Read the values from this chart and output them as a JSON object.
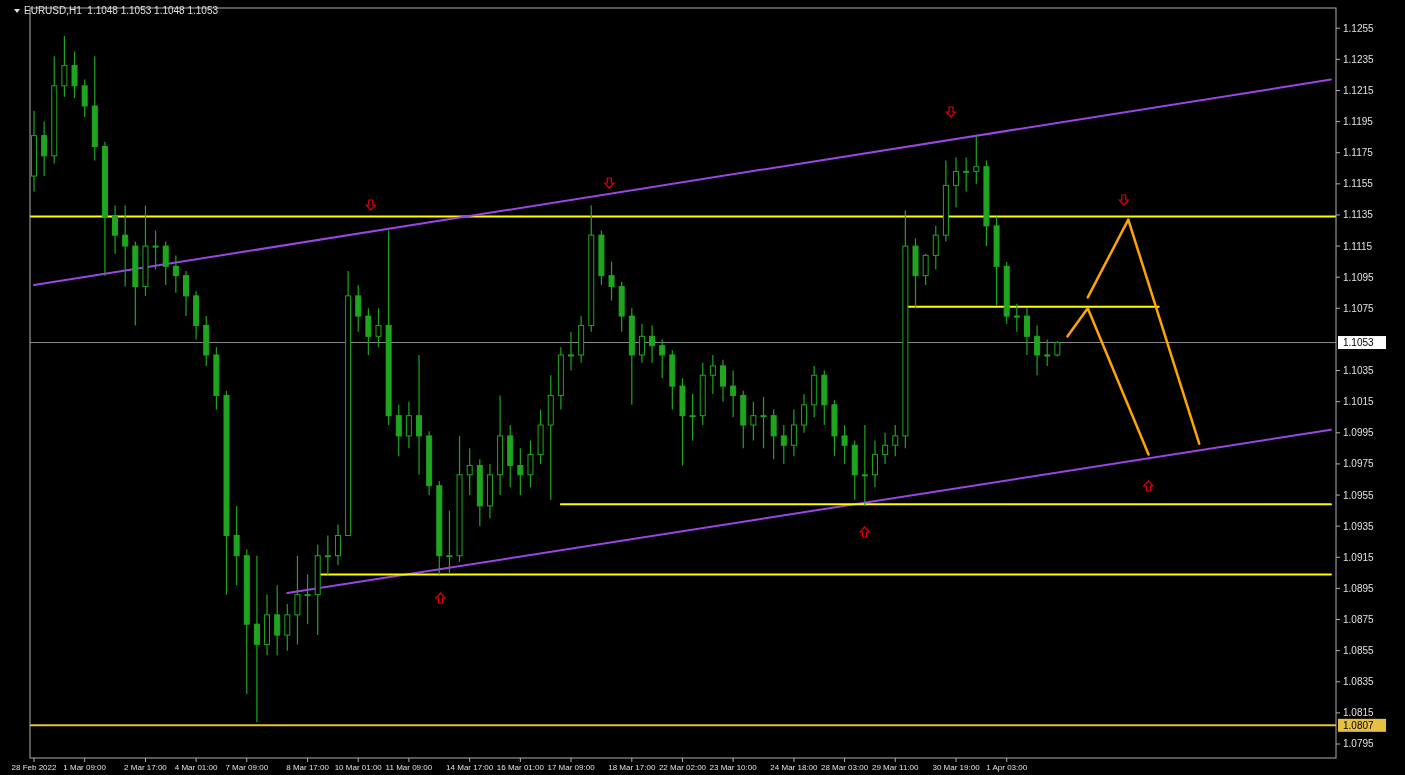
{
  "chart_data": {
    "type": "candlestick",
    "title": "EURUSD,H1  1.1048 1.1053 1.1048 1.1053",
    "categories": [
      "28 Feb 2022",
      null,
      null,
      null,
      null,
      "1 Mar 09:00",
      null,
      null,
      null,
      null,
      null,
      "2 Mar 17:00",
      null,
      null,
      null,
      null,
      "4 Mar 01:00",
      null,
      null,
      null,
      null,
      "7 Mar 09:00",
      null,
      null,
      null,
      null,
      null,
      "8 Mar 17:00",
      null,
      null,
      null,
      null,
      "10 Mar 01:00",
      null,
      null,
      null,
      null,
      "11 Mar 09:00",
      null,
      null,
      null,
      null,
      null,
      "14 Mar 17:00",
      null,
      null,
      null,
      null,
      "16 Mar 01:00",
      null,
      null,
      null,
      null,
      "17 Mar 09:00",
      null,
      null,
      null,
      null,
      null,
      "18 Mar 17:00",
      null,
      null,
      null,
      null,
      "22 Mar 02:00",
      null,
      null,
      null,
      null,
      "23 Mar 10:00",
      null,
      null,
      null,
      null,
      null,
      "24 Mar 18:00",
      null,
      null,
      null,
      null,
      "28 Mar 03:00",
      null,
      null,
      null,
      null,
      "29 Mar 11:00",
      null,
      null,
      null,
      null,
      null,
      "30 Mar 19:00",
      null,
      null,
      null,
      null,
      "1 Apr 03:00",
      null,
      null,
      null,
      null,
      null,
      null,
      null,
      null,
      null,
      null,
      null,
      null,
      null,
      null,
      null,
      null,
      null,
      null,
      null,
      null,
      null,
      null,
      null,
      null,
      null,
      null,
      null,
      null,
      null,
      null,
      null,
      null
    ],
    "ylim": [
      1.0786,
      1.1268
    ],
    "yticks": [
      1.0795,
      1.0815,
      1.0835,
      1.0855,
      1.0875,
      1.0895,
      1.0915,
      1.0935,
      1.0955,
      1.0975,
      1.0995,
      1.1015,
      1.1035,
      1.1075,
      1.1095,
      1.1115,
      1.1135,
      1.1155,
      1.1175,
      1.1195,
      1.1215,
      1.1235,
      1.1255
    ],
    "grid": false,
    "color": "#1fa51f",
    "ref_lines": [
      {
        "axis": "y",
        "value": 1.1134,
        "color": "#ffff00"
      },
      {
        "axis": "y",
        "value": 1.1053,
        "label": "1.1053",
        "color": "#8c8c8c"
      },
      {
        "axis": "y",
        "value": 1.0807,
        "label": "1.0807",
        "color": "#e8c040"
      }
    ],
    "series": [
      {
        "type": "line",
        "color": "#9b45e4",
        "values": [
          1.109,
          null,
          null,
          null,
          null,
          null,
          null,
          null,
          null,
          null,
          null,
          null,
          null,
          null,
          null,
          null,
          null,
          null,
          null,
          null,
          null,
          null,
          null,
          null,
          null,
          null,
          null,
          null,
          null,
          null,
          null,
          null,
          null,
          null,
          null,
          null,
          null,
          null,
          null,
          null,
          null,
          null,
          null,
          null,
          null,
          null,
          null,
          null,
          null,
          null,
          null,
          null,
          null,
          null,
          null,
          null,
          null,
          null,
          null,
          null,
          null,
          null,
          null,
          null,
          null,
          null,
          null,
          null,
          null,
          null,
          null,
          null,
          null,
          null,
          null,
          null,
          null,
          null,
          null,
          null,
          null,
          null,
          null,
          null,
          null,
          null,
          null,
          null,
          null,
          null,
          null,
          null,
          null,
          null,
          null,
          null,
          null,
          null,
          null,
          null,
          null,
          null,
          null,
          null,
          null,
          null,
          null,
          null,
          null,
          null,
          null,
          null,
          null,
          null,
          null,
          null,
          null,
          null,
          null,
          null,
          null,
          null,
          null,
          null,
          null,
          null,
          null,
          null,
          1.1222
        ]
      },
      {
        "type": "line",
        "color": "#9b45e4",
        "values": [
          null,
          null,
          null,
          null,
          null,
          null,
          null,
          null,
          null,
          null,
          null,
          null,
          null,
          null,
          null,
          null,
          null,
          null,
          null,
          null,
          null,
          null,
          null,
          null,
          null,
          1.0892,
          null,
          null,
          null,
          null,
          null,
          null,
          null,
          null,
          null,
          null,
          null,
          null,
          null,
          null,
          null,
          null,
          null,
          null,
          null,
          null,
          null,
          null,
          null,
          null,
          null,
          null,
          null,
          null,
          null,
          null,
          null,
          null,
          null,
          null,
          null,
          null,
          null,
          null,
          null,
          null,
          null,
          null,
          null,
          null,
          null,
          null,
          null,
          null,
          null,
          null,
          null,
          null,
          null,
          null,
          null,
          null,
          null,
          null,
          null,
          null,
          null,
          null,
          null,
          null,
          null,
          null,
          null,
          null,
          null,
          null,
          null,
          null,
          null,
          null,
          null,
          null,
          null,
          null,
          null,
          null,
          null,
          null,
          null,
          null,
          null,
          null,
          null,
          null,
          null,
          null,
          null,
          null,
          null,
          null,
          null,
          null,
          null,
          null,
          null,
          null,
          null,
          null,
          1.0997
        ]
      },
      {
        "type": "line",
        "color": "#ffff00",
        "values": [
          null,
          null,
          null,
          null,
          null,
          null,
          null,
          null,
          null,
          null,
          null,
          null,
          null,
          null,
          null,
          null,
          null,
          null,
          null,
          null,
          null,
          null,
          null,
          null,
          null,
          null,
          null,
          null,
          null,
          null,
          null,
          null,
          null,
          null,
          null,
          null,
          null,
          null,
          null,
          null,
          null,
          null,
          null,
          null,
          null,
          null,
          null,
          null,
          null,
          null,
          null,
          null,
          null,
          null,
          null,
          null,
          null,
          null,
          null,
          null,
          null,
          null,
          null,
          null,
          null,
          null,
          null,
          null,
          null,
          null,
          null,
          null,
          null,
          null,
          null,
          null,
          null,
          null,
          null,
          null,
          null,
          null,
          null,
          null,
          null,
          null,
          1.1076,
          null,
          null,
          null,
          null,
          null,
          null,
          null,
          null,
          null,
          null,
          null,
          null,
          null,
          null,
          null,
          null,
          null,
          null,
          null,
          null,
          null,
          null,
          null,
          null,
          1.1076,
          null,
          null,
          null,
          null,
          null,
          null,
          null,
          null,
          null,
          null,
          null,
          null,
          null,
          null,
          null,
          null,
          null
        ]
      },
      {
        "type": "line",
        "color": "#ffff00",
        "values": [
          null,
          null,
          null,
          null,
          null,
          null,
          null,
          null,
          null,
          null,
          null,
          null,
          null,
          null,
          null,
          null,
          null,
          null,
          null,
          null,
          null,
          null,
          null,
          null,
          null,
          null,
          null,
          null,
          null,
          null,
          null,
          null,
          null,
          null,
          null,
          null,
          null,
          null,
          null,
          null,
          null,
          null,
          null,
          null,
          null,
          null,
          null,
          null,
          null,
          null,
          null,
          null,
          1.0949,
          null,
          null,
          null,
          null,
          null,
          null,
          null,
          null,
          null,
          null,
          null,
          null,
          null,
          null,
          null,
          null,
          null,
          null,
          null,
          null,
          null,
          null,
          null,
          null,
          null,
          null,
          null,
          null,
          null,
          null,
          null,
          null,
          null,
          null,
          null,
          null,
          null,
          null,
          null,
          null,
          null,
          null,
          null,
          null,
          null,
          null,
          null,
          null,
          null,
          null,
          null,
          null,
          null,
          null,
          null,
          null,
          null,
          null,
          null,
          null,
          null,
          null,
          null,
          null,
          null,
          null,
          null,
          null,
          null,
          null,
          null,
          null,
          null,
          null,
          null,
          1.0949
        ]
      },
      {
        "type": "line",
        "color": "#ffff00",
        "values": [
          null,
          null,
          null,
          null,
          null,
          null,
          null,
          null,
          null,
          null,
          null,
          null,
          null,
          null,
          null,
          null,
          null,
          null,
          null,
          null,
          null,
          null,
          null,
          null,
          null,
          null,
          null,
          null,
          1.0904,
          null,
          null,
          null,
          null,
          null,
          null,
          null,
          null,
          null,
          null,
          null,
          null,
          null,
          null,
          null,
          null,
          null,
          null,
          null,
          null,
          null,
          null,
          null,
          null,
          null,
          null,
          null,
          null,
          null,
          null,
          null,
          null,
          null,
          null,
          null,
          null,
          null,
          null,
          null,
          null,
          null,
          null,
          null,
          null,
          null,
          null,
          null,
          null,
          null,
          null,
          null,
          null,
          null,
          null,
          null,
          null,
          null,
          null,
          null,
          null,
          null,
          null,
          null,
          null,
          null,
          null,
          null,
          null,
          null,
          null,
          null,
          null,
          null,
          null,
          null,
          null,
          null,
          null,
          null,
          null,
          null,
          null,
          null,
          null,
          null,
          null,
          null,
          null,
          null,
          null,
          null,
          null,
          null,
          null,
          null,
          null,
          null,
          null,
          null,
          1.0904
        ]
      },
      {
        "type": "line",
        "color": "#ffa500",
        "values": [
          null,
          null,
          null,
          null,
          null,
          null,
          null,
          null,
          null,
          null,
          null,
          null,
          null,
          null,
          null,
          null,
          null,
          null,
          null,
          null,
          null,
          null,
          null,
          null,
          null,
          null,
          null,
          null,
          null,
          null,
          null,
          null,
          null,
          null,
          null,
          null,
          null,
          null,
          null,
          null,
          null,
          null,
          null,
          null,
          null,
          null,
          null,
          null,
          null,
          null,
          null,
          null,
          null,
          null,
          null,
          null,
          null,
          null,
          null,
          null,
          null,
          null,
          null,
          null,
          null,
          null,
          null,
          null,
          null,
          null,
          null,
          null,
          null,
          null,
          null,
          null,
          null,
          null,
          null,
          null,
          null,
          null,
          null,
          null,
          null,
          null,
          null,
          null,
          null,
          null,
          null,
          null,
          null,
          null,
          null,
          null,
          null,
          null,
          null,
          null,
          null,
          null,
          1.1057,
          null,
          1.1075,
          null,
          null,
          null,
          null,
          null,
          1.0981,
          null,
          null,
          null,
          null,
          null,
          null,
          null,
          null,
          null,
          null,
          null,
          null,
          null,
          null,
          null,
          null,
          null,
          null
        ]
      },
      {
        "type": "line",
        "color": "#ffa500",
        "values": [
          null,
          null,
          null,
          null,
          null,
          null,
          null,
          null,
          null,
          null,
          null,
          null,
          null,
          null,
          null,
          null,
          null,
          null,
          null,
          null,
          null,
          null,
          null,
          null,
          null,
          null,
          null,
          null,
          null,
          null,
          null,
          null,
          null,
          null,
          null,
          null,
          null,
          null,
          null,
          null,
          null,
          null,
          null,
          null,
          null,
          null,
          null,
          null,
          null,
          null,
          null,
          null,
          null,
          null,
          null,
          null,
          null,
          null,
          null,
          null,
          null,
          null,
          null,
          null,
          null,
          null,
          null,
          null,
          null,
          null,
          null,
          null,
          null,
          null,
          null,
          null,
          null,
          null,
          null,
          null,
          null,
          null,
          null,
          null,
          null,
          null,
          null,
          null,
          null,
          null,
          null,
          null,
          null,
          null,
          null,
          null,
          null,
          null,
          null,
          null,
          null,
          null,
          null,
          null,
          1.1082,
          null,
          null,
          null,
          1.1132,
          null,
          null,
          null,
          null,
          null,
          null,
          1.0988,
          null,
          null,
          null,
          null,
          null,
          null,
          null,
          null,
          null,
          null,
          null,
          null,
          null
        ]
      }
    ],
    "ohlc": [
      [
        1.116,
        1.1202,
        1.115,
        1.1186
      ],
      [
        1.1186,
        1.1195,
        1.116,
        1.1173
      ],
      [
        1.1173,
        1.1237,
        1.1168,
        1.1218
      ],
      [
        1.1218,
        1.125,
        1.1211,
        1.1231
      ],
      [
        1.1231,
        1.124,
        1.121,
        1.1218
      ],
      [
        1.1218,
        1.1222,
        1.1198,
        1.1205
      ],
      [
        1.1205,
        1.1237,
        1.117,
        1.1179
      ],
      [
        1.1179,
        1.1182,
        1.1096,
        1.1134
      ],
      [
        1.1134,
        1.1141,
        1.111,
        1.1122
      ],
      [
        1.1122,
        1.1141,
        1.1089,
        1.1115
      ],
      [
        1.1115,
        1.1118,
        1.1064,
        1.1089
      ],
      [
        1.1089,
        1.1141,
        1.1083,
        1.1115
      ],
      [
        1.1115,
        1.1125,
        1.11,
        1.1115
      ],
      [
        1.1115,
        1.1118,
        1.109,
        1.1102
      ],
      [
        1.1102,
        1.1109,
        1.1085,
        1.1096
      ],
      [
        1.1096,
        1.1099,
        1.107,
        1.1083
      ],
      [
        1.1083,
        1.1086,
        1.1055,
        1.1064
      ],
      [
        1.1064,
        1.107,
        1.1038,
        1.1045
      ],
      [
        1.1045,
        1.105,
        1.101,
        1.1019
      ],
      [
        1.1019,
        1.1022,
        1.0891,
        1.0929
      ],
      [
        1.0929,
        1.0948,
        1.0897,
        1.0916
      ],
      [
        1.0916,
        1.092,
        1.0827,
        1.0872
      ],
      [
        1.0872,
        1.0916,
        1.0809,
        1.0859
      ],
      [
        1.0859,
        1.0891,
        1.0852,
        1.0878
      ],
      [
        1.0878,
        1.0897,
        1.0852,
        1.0865
      ],
      [
        1.0865,
        1.0885,
        1.0855,
        1.0878
      ],
      [
        1.0878,
        1.0916,
        1.0859,
        1.0891
      ],
      [
        1.0891,
        1.0904,
        1.0872,
        1.0891
      ],
      [
        1.0891,
        1.0923,
        1.0865,
        1.0916
      ],
      [
        1.0916,
        1.0929,
        1.0904,
        1.0916
      ],
      [
        1.0916,
        1.0936,
        1.091,
        1.0929
      ],
      [
        1.0929,
        1.1099,
        1.0929,
        1.1083
      ],
      [
        1.1083,
        1.109,
        1.106,
        1.107
      ],
      [
        1.107,
        1.1075,
        1.1045,
        1.1057
      ],
      [
        1.1057,
        1.1075,
        1.105,
        1.1064
      ],
      [
        1.1064,
        1.1125,
        1.1,
        1.1006
      ],
      [
        1.1006,
        1.1013,
        1.098,
        1.0993
      ],
      [
        1.0993,
        1.1015,
        1.0985,
        1.1006
      ],
      [
        1.1006,
        1.1045,
        1.0968,
        1.0993
      ],
      [
        1.0993,
        1.0996,
        1.0955,
        1.0961
      ],
      [
        1.0961,
        1.0964,
        1.0904,
        1.0916
      ],
      [
        1.0916,
        1.0945,
        1.0905,
        1.0916
      ],
      [
        1.0916,
        1.0993,
        1.0912,
        1.0968
      ],
      [
        1.0968,
        1.0985,
        1.0955,
        1.0974
      ],
      [
        1.0974,
        1.0978,
        1.0935,
        1.0948
      ],
      [
        1.0948,
        1.0975,
        1.094,
        1.0968
      ],
      [
        1.0968,
        1.1019,
        1.0955,
        1.0993
      ],
      [
        1.0993,
        1.1,
        1.096,
        1.0974
      ],
      [
        1.0974,
        1.0985,
        1.0955,
        1.0968
      ],
      [
        1.0968,
        1.099,
        1.096,
        1.0981
      ],
      [
        1.0981,
        1.101,
        1.0975,
        1.1
      ],
      [
        1.1,
        1.1032,
        1.0952,
        1.1019
      ],
      [
        1.1019,
        1.105,
        1.101,
        1.1045
      ],
      [
        1.1045,
        1.106,
        1.1035,
        1.1045
      ],
      [
        1.1045,
        1.107,
        1.104,
        1.1064
      ],
      [
        1.1064,
        1.1141,
        1.106,
        1.1122
      ],
      [
        1.1122,
        1.1125,
        1.109,
        1.1096
      ],
      [
        1.1096,
        1.1105,
        1.108,
        1.1089
      ],
      [
        1.1089,
        1.1092,
        1.106,
        1.107
      ],
      [
        1.107,
        1.1075,
        1.1013,
        1.1045
      ],
      [
        1.1045,
        1.1065,
        1.104,
        1.1057
      ],
      [
        1.1057,
        1.1064,
        1.104,
        1.1051
      ],
      [
        1.1051,
        1.1055,
        1.103,
        1.1045
      ],
      [
        1.1045,
        1.1048,
        1.101,
        1.1025
      ],
      [
        1.1025,
        1.103,
        1.0974,
        1.1006
      ],
      [
        1.1006,
        1.102,
        1.099,
        1.1006
      ],
      [
        1.1006,
        1.104,
        1.1,
        1.1032
      ],
      [
        1.1032,
        1.1045,
        1.102,
        1.1038
      ],
      [
        1.1038,
        1.1042,
        1.1015,
        1.1025
      ],
      [
        1.1025,
        1.1035,
        1.1005,
        1.1019
      ],
      [
        1.1019,
        1.1022,
        1.0985,
        1.1
      ],
      [
        1.1,
        1.1015,
        1.099,
        1.1006
      ],
      [
        1.1006,
        1.1018,
        1.0985,
        1.1006
      ],
      [
        1.1006,
        1.101,
        1.0978,
        1.0993
      ],
      [
        1.0993,
        1.1,
        1.0975,
        1.0987
      ],
      [
        1.0987,
        1.101,
        1.098,
        1.1
      ],
      [
        1.1,
        1.102,
        1.0995,
        1.1013
      ],
      [
        1.1013,
        1.1038,
        1.1005,
        1.1032
      ],
      [
        1.1032,
        1.1035,
        1.1,
        1.1013
      ],
      [
        1.1013,
        1.1016,
        1.098,
        1.0993
      ],
      [
        1.0993,
        1.1,
        1.0975,
        1.0987
      ],
      [
        1.0987,
        1.099,
        1.0952,
        1.0968
      ],
      [
        1.0968,
        1.1,
        1.0948,
        1.0968
      ],
      [
        1.0968,
        1.099,
        1.096,
        1.0981
      ],
      [
        1.0981,
        1.0995,
        1.0975,
        1.0987
      ],
      [
        1.0987,
        1.1,
        1.098,
        1.0993
      ],
      [
        1.0993,
        1.1138,
        1.0985,
        1.1115
      ],
      [
        1.1115,
        1.112,
        1.1075,
        1.1096
      ],
      [
        1.1096,
        1.111,
        1.109,
        1.1109
      ],
      [
        1.1109,
        1.1128,
        1.11,
        1.1122
      ],
      [
        1.1122,
        1.117,
        1.1118,
        1.1154
      ],
      [
        1.1154,
        1.1172,
        1.114,
        1.1163
      ],
      [
        1.1163,
        1.1172,
        1.115,
        1.1163
      ],
      [
        1.1163,
        1.1186,
        1.1155,
        1.1166
      ],
      [
        1.1166,
        1.117,
        1.1115,
        1.1128
      ],
      [
        1.1128,
        1.1134,
        1.1077,
        1.1102
      ],
      [
        1.1102,
        1.1105,
        1.1065,
        1.107
      ],
      [
        1.107,
        1.1078,
        1.106,
        1.107
      ],
      [
        1.107,
        1.1075,
        1.1045,
        1.1057
      ],
      [
        1.1057,
        1.1064,
        1.1032,
        1.1045
      ],
      [
        1.1045,
        1.1055,
        1.1038,
        1.1045
      ],
      [
        1.1045,
        1.1054,
        1.1044,
        1.1053
      ],
      null,
      null,
      null,
      null,
      null,
      null,
      null,
      null,
      null,
      null,
      null,
      null,
      null,
      null,
      null,
      null,
      null,
      null,
      null,
      null,
      null,
      null,
      null,
      null,
      null,
      null,
      null
    ]
  }
}
